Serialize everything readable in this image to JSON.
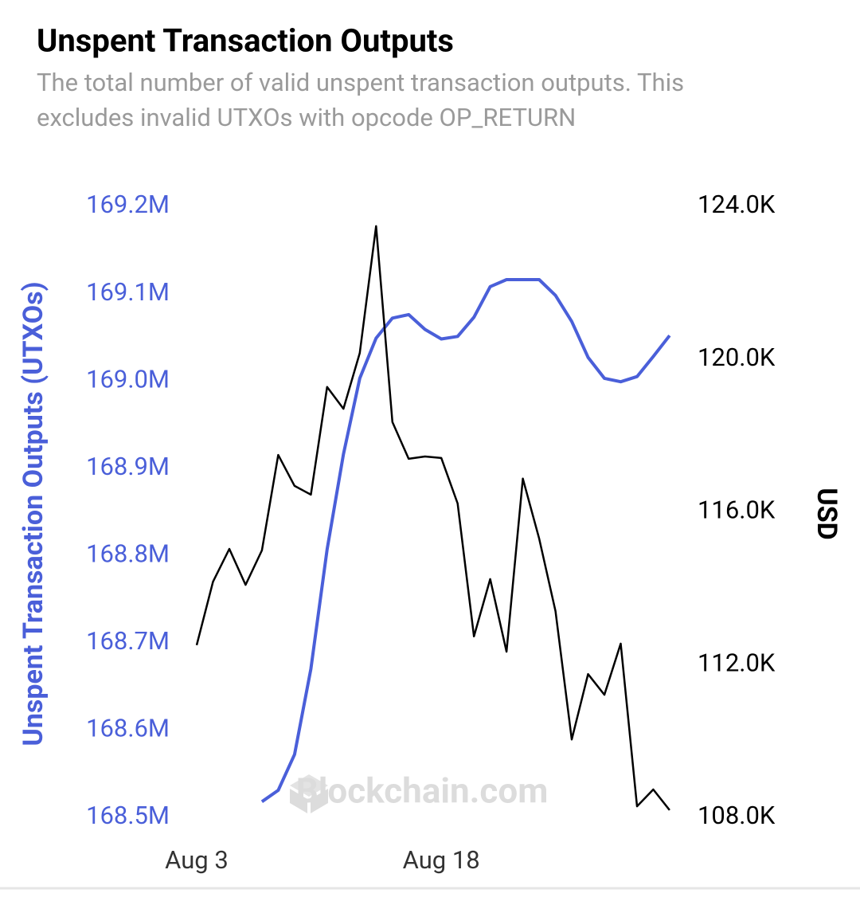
{
  "chart_data": {
    "type": "line",
    "title": "Unspent Transaction Outputs",
    "subtitle": "The total number of valid unspent transaction outputs. This excludes invalid UTXOs with opcode OP_RETURN",
    "y_label": "Unspent Transaction Outputs (UTXOs)",
    "y2_label": "USD",
    "watermark": "Blockchain.com",
    "categories": [
      "Aug 3",
      null,
      null,
      null,
      null,
      null,
      null,
      null,
      null,
      null,
      null,
      null,
      null,
      null,
      null,
      "Aug 18",
      null,
      null,
      null,
      null,
      null,
      null,
      null,
      null,
      null,
      null,
      null,
      null,
      null,
      null
    ],
    "series": [
      {
        "name": "Unspent Transaction Outputs (UTXOs)",
        "color": "#4a5fd9",
        "axis": "y",
        "values": [
          null,
          null,
          null,
          null,
          168518000,
          168531000,
          168572000,
          168670000,
          168807000,
          168916000,
          169003000,
          169049000,
          169072000,
          169076000,
          169059000,
          169048000,
          169051000,
          169073000,
          169108000,
          169116000,
          169116000,
          169116000,
          169098000,
          169068000,
          169027000,
          169003000,
          168999000,
          169005000,
          169028000,
          169052000
        ]
      },
      {
        "name": "USD",
        "color": "#000000",
        "axis": "y2",
        "values": [
          112510,
          114170,
          115030,
          114090,
          114990,
          117490,
          116680,
          116450,
          119270,
          118700,
          120160,
          123480,
          118350,
          117390,
          117450,
          117410,
          116220,
          112740,
          114240,
          112340,
          116870,
          115300,
          113400,
          110040,
          111750,
          111210,
          112550,
          108290,
          108730,
          108190
        ]
      }
    ],
    "ylim": [
      168500000,
      169200000
    ],
    "yticks": [
      {
        "value": 168500000,
        "label": "168.5M"
      },
      {
        "value": 168600000,
        "label": "168.6M"
      },
      {
        "value": 168700000,
        "label": "168.7M"
      },
      {
        "value": 168800000,
        "label": "168.8M"
      },
      {
        "value": 168900000,
        "label": "168.9M"
      },
      {
        "value": 169000000,
        "label": "169.0M"
      },
      {
        "value": 169100000,
        "label": "169.1M"
      },
      {
        "value": 169200000,
        "label": "169.2M"
      }
    ],
    "y2lim": [
      108000,
      124000
    ],
    "y2ticks": [
      {
        "value": 108000,
        "label": "108.0K"
      },
      {
        "value": 112000,
        "label": "112.0K"
      },
      {
        "value": 116000,
        "label": "116.0K"
      },
      {
        "value": 120000,
        "label": "120.0K"
      },
      {
        "value": 124000,
        "label": "124.0K"
      }
    ],
    "grid": false
  }
}
